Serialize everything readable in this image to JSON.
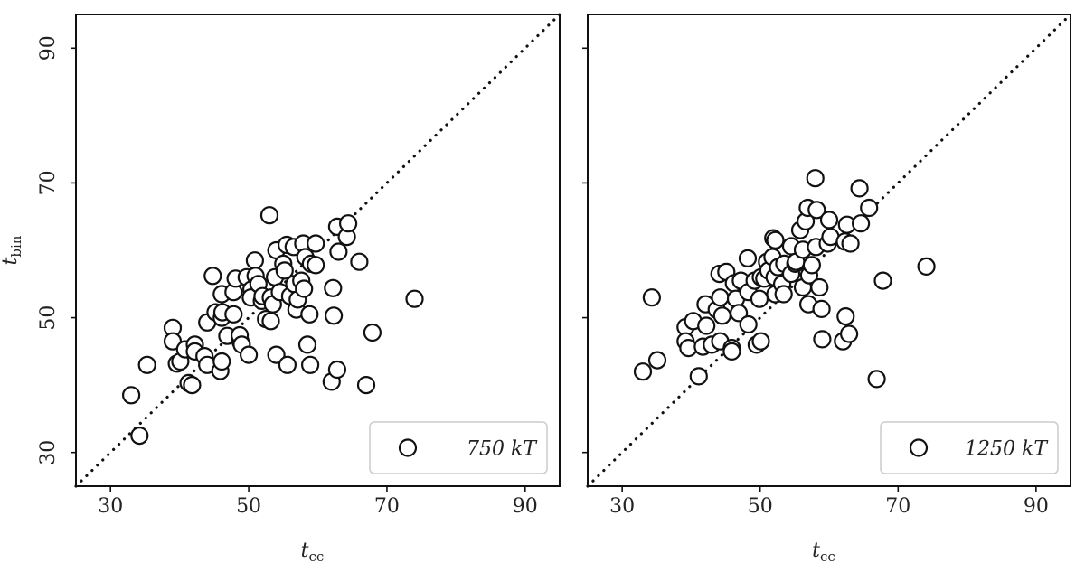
{
  "chart_data": [
    {
      "type": "scatter",
      "xlabel": {
        "main": "t",
        "sub": "cc"
      },
      "ylabel": {
        "main": "t",
        "sub": "bin"
      },
      "xlim": [
        25,
        95
      ],
      "ylim": [
        25,
        95
      ],
      "xticks": [
        "30",
        "50",
        "70",
        "90"
      ],
      "yticks": [
        "30",
        "50",
        "70",
        "90"
      ],
      "legend": {
        "label": "750 kT",
        "location": "lower-right"
      },
      "reference_line": {
        "style": "dotted",
        "equation": "y = x"
      },
      "grid": false,
      "series": [
        {
          "marker": "open-circle",
          "points": [
            [
              33,
              38.5
            ],
            [
              34.2,
              32.5
            ],
            [
              35.3,
              43
            ],
            [
              39,
              48.5
            ],
            [
              39,
              46.5
            ],
            [
              39.6,
              43.2
            ],
            [
              40.1,
              43.5
            ],
            [
              40.8,
              45.3
            ],
            [
              41.3,
              40.3
            ],
            [
              41.8,
              40
            ],
            [
              42.2,
              46
            ],
            [
              42.2,
              45
            ],
            [
              43.6,
              44.3
            ],
            [
              44,
              43
            ],
            [
              44,
              49.3
            ],
            [
              44.8,
              56.2
            ],
            [
              45.2,
              50.8
            ],
            [
              45.9,
              42.1
            ],
            [
              46.1,
              50
            ],
            [
              46.1,
              43.5
            ],
            [
              46.1,
              53.5
            ],
            [
              46.2,
              50.8
            ],
            [
              46.9,
              47.3
            ],
            [
              47.8,
              50.5
            ],
            [
              47.8,
              53.8
            ],
            [
              48.1,
              55.8
            ],
            [
              48.8,
              46.5
            ],
            [
              48.7,
              47.4
            ],
            [
              49,
              46
            ],
            [
              49.7,
              56
            ],
            [
              50,
              44.5
            ],
            [
              50.4,
              54.2
            ],
            [
              50.3,
              53
            ],
            [
              50.9,
              58.5
            ],
            [
              51,
              56.2
            ],
            [
              51.4,
              55
            ],
            [
              51.9,
              52.5
            ],
            [
              52,
              53.2
            ],
            [
              52.5,
              49.8
            ],
            [
              53,
              65.2
            ],
            [
              53.2,
              53
            ],
            [
              53.2,
              49.5
            ],
            [
              53.5,
              52
            ],
            [
              53.8,
              56
            ],
            [
              54,
              44.5
            ],
            [
              54,
              60
            ],
            [
              54.5,
              53.8
            ],
            [
              55,
              58
            ],
            [
              55.2,
              57
            ],
            [
              55.5,
              60.8
            ],
            [
              55.6,
              43
            ],
            [
              56,
              53.2
            ],
            [
              56.5,
              60.5
            ],
            [
              56.6,
              55
            ],
            [
              56.9,
              51.2
            ],
            [
              57.1,
              52.7
            ],
            [
              57.6,
              55.5
            ],
            [
              57.9,
              61
            ],
            [
              58,
              54.3
            ],
            [
              58.2,
              59
            ],
            [
              58.5,
              46
            ],
            [
              58.8,
              50.5
            ],
            [
              58.9,
              43
            ],
            [
              59,
              58
            ],
            [
              59.7,
              61
            ],
            [
              59.7,
              57.8
            ],
            [
              62,
              40.5
            ],
            [
              62.2,
              54.4
            ],
            [
              62.3,
              50.3
            ],
            [
              62.8,
              63.5
            ],
            [
              62.8,
              42.3
            ],
            [
              63,
              59.8
            ],
            [
              64.2,
              62
            ],
            [
              64.4,
              64
            ],
            [
              66,
              58.3
            ],
            [
              67,
              40
            ],
            [
              67.9,
              47.8
            ],
            [
              74,
              52.8
            ]
          ]
        }
      ]
    },
    {
      "type": "scatter",
      "xlabel": {
        "main": "t",
        "sub": "cc"
      },
      "ylabel": {
        "main": "",
        "sub": ""
      },
      "xlim": [
        25,
        95
      ],
      "ylim": [
        25,
        95
      ],
      "xticks": [
        "30",
        "50",
        "70",
        "90"
      ],
      "yticks": [],
      "legend": {
        "label": "1250 kT",
        "location": "lower-right"
      },
      "reference_line": {
        "style": "dotted",
        "equation": "y = x"
      },
      "grid": false,
      "series": [
        {
          "marker": "open-circle",
          "points": [
            [
              33,
              42
            ],
            [
              34.3,
              53
            ],
            [
              35.1,
              43.7
            ],
            [
              39.2,
              48.6
            ],
            [
              39.2,
              46.5
            ],
            [
              39.6,
              45.5
            ],
            [
              40.3,
              49.5
            ],
            [
              41.1,
              41.3
            ],
            [
              41.7,
              45.7
            ],
            [
              42.1,
              52
            ],
            [
              42.2,
              48.8
            ],
            [
              43,
              46
            ],
            [
              43.7,
              51.2
            ],
            [
              44.1,
              56.5
            ],
            [
              44.2,
              53
            ],
            [
              44.5,
              50.3
            ],
            [
              44.2,
              46.5
            ],
            [
              45.1,
              56.8
            ],
            [
              45.9,
              45.5
            ],
            [
              45.9,
              45
            ],
            [
              46.2,
              55.1
            ],
            [
              46.5,
              52.8
            ],
            [
              46.9,
              50.7
            ],
            [
              47.2,
              55.5
            ],
            [
              48.2,
              58.8
            ],
            [
              48.3,
              49
            ],
            [
              48.3,
              53.8
            ],
            [
              49.2,
              55.5
            ],
            [
              49.5,
              46
            ],
            [
              49.9,
              52.8
            ],
            [
              50.1,
              56
            ],
            [
              50.1,
              46.5
            ],
            [
              50.6,
              55.8
            ],
            [
              51,
              58.3
            ],
            [
              51.2,
              57
            ],
            [
              51.8,
              59
            ],
            [
              51.9,
              61.8
            ],
            [
              52.1,
              56
            ],
            [
              52.2,
              53.5
            ],
            [
              52.2,
              61.5
            ],
            [
              52.6,
              57.5
            ],
            [
              53.2,
              55
            ],
            [
              53.4,
              53.5
            ],
            [
              53.5,
              58
            ],
            [
              54.5,
              60.6
            ],
            [
              54.5,
              56.5
            ],
            [
              55.1,
              58
            ],
            [
              55.2,
              58.3
            ],
            [
              55.8,
              63
            ],
            [
              56.2,
              60.1
            ],
            [
              56.2,
              54.5
            ],
            [
              56.6,
              64.3
            ],
            [
              56.9,
              66.3
            ],
            [
              57,
              52
            ],
            [
              57.1,
              56.3
            ],
            [
              57.5,
              57.8
            ],
            [
              58,
              70.7
            ],
            [
              58.1,
              60.5
            ],
            [
              58.2,
              66
            ],
            [
              58.6,
              54.5
            ],
            [
              58.9,
              51.3
            ],
            [
              59,
              46.8
            ],
            [
              59.8,
              61
            ],
            [
              60,
              64.5
            ],
            [
              60.2,
              62
            ],
            [
              62,
              46.5
            ],
            [
              62.3,
              61.3
            ],
            [
              62.4,
              50.2
            ],
            [
              62.6,
              63.8
            ],
            [
              62.9,
              47.6
            ],
            [
              63.1,
              61
            ],
            [
              64.4,
              69.2
            ],
            [
              64.6,
              64
            ],
            [
              65.8,
              66.3
            ],
            [
              66.9,
              40.9
            ],
            [
              67.8,
              55.5
            ],
            [
              74.1,
              57.6
            ]
          ]
        }
      ]
    }
  ]
}
